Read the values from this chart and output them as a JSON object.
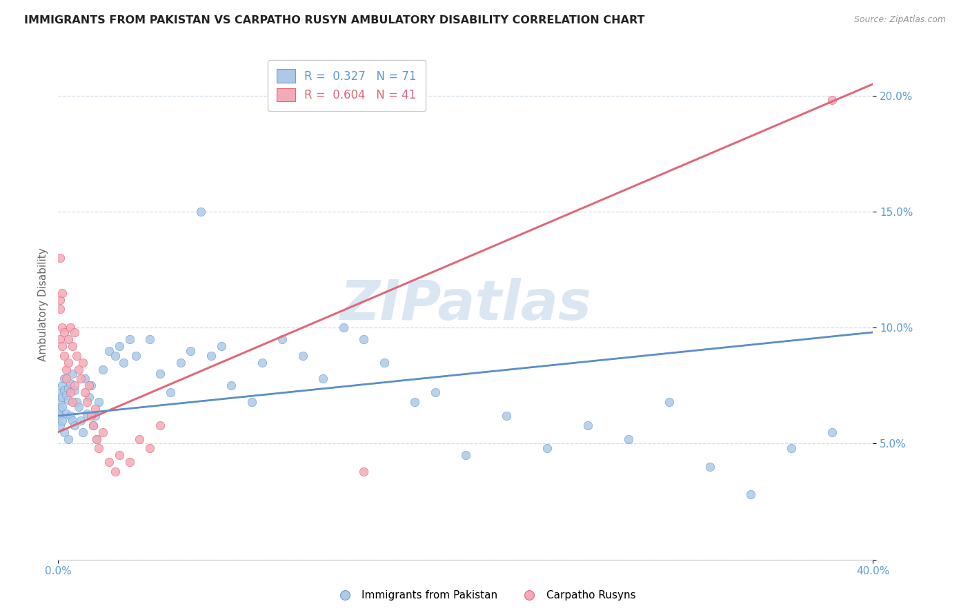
{
  "title": "IMMIGRANTS FROM PAKISTAN VS CARPATHO RUSYN AMBULATORY DISABILITY CORRELATION CHART",
  "source": "Source: ZipAtlas.com",
  "ylabel": "Ambulatory Disability",
  "R_blue": 0.327,
  "N_blue": 71,
  "R_pink": 0.604,
  "N_pink": 41,
  "label_blue": "Immigrants from Pakistan",
  "label_pink": "Carpatho Rusyns",
  "xlim": [
    0.0,
    0.4
  ],
  "ylim": [
    0.0,
    0.22
  ],
  "yticks": [
    0.0,
    0.05,
    0.1,
    0.15,
    0.2
  ],
  "ytick_labels": [
    "",
    "5.0%",
    "10.0%",
    "15.0%",
    "20.0%"
  ],
  "xtick_left": "0.0%",
  "xtick_right": "40.0%",
  "blue_scatter_x": [
    0.001,
    0.001,
    0.001,
    0.001,
    0.001,
    0.002,
    0.002,
    0.002,
    0.002,
    0.003,
    0.003,
    0.003,
    0.004,
    0.004,
    0.005,
    0.005,
    0.005,
    0.006,
    0.006,
    0.007,
    0.007,
    0.008,
    0.008,
    0.009,
    0.01,
    0.011,
    0.012,
    0.013,
    0.014,
    0.015,
    0.016,
    0.017,
    0.018,
    0.019,
    0.02,
    0.022,
    0.025,
    0.028,
    0.03,
    0.032,
    0.035,
    0.038,
    0.045,
    0.05,
    0.055,
    0.06,
    0.065,
    0.07,
    0.075,
    0.08,
    0.085,
    0.095,
    0.1,
    0.11,
    0.12,
    0.13,
    0.14,
    0.15,
    0.16,
    0.175,
    0.185,
    0.2,
    0.22,
    0.24,
    0.26,
    0.28,
    0.3,
    0.32,
    0.34,
    0.36,
    0.38
  ],
  "blue_scatter_y": [
    0.072,
    0.068,
    0.065,
    0.062,
    0.058,
    0.075,
    0.07,
    0.066,
    0.06,
    0.078,
    0.073,
    0.055,
    0.071,
    0.063,
    0.074,
    0.069,
    0.052,
    0.076,
    0.062,
    0.08,
    0.06,
    0.073,
    0.058,
    0.068,
    0.066,
    0.06,
    0.055,
    0.078,
    0.063,
    0.07,
    0.075,
    0.058,
    0.062,
    0.052,
    0.068,
    0.082,
    0.09,
    0.088,
    0.092,
    0.085,
    0.095,
    0.088,
    0.095,
    0.08,
    0.072,
    0.085,
    0.09,
    0.15,
    0.088,
    0.092,
    0.075,
    0.068,
    0.085,
    0.095,
    0.088,
    0.078,
    0.1,
    0.095,
    0.085,
    0.068,
    0.072,
    0.045,
    0.062,
    0.048,
    0.058,
    0.052,
    0.068,
    0.04,
    0.028,
    0.048,
    0.055
  ],
  "pink_scatter_x": [
    0.001,
    0.001,
    0.001,
    0.001,
    0.002,
    0.002,
    0.002,
    0.003,
    0.003,
    0.004,
    0.004,
    0.005,
    0.005,
    0.006,
    0.006,
    0.007,
    0.007,
    0.008,
    0.008,
    0.009,
    0.01,
    0.011,
    0.012,
    0.013,
    0.014,
    0.015,
    0.016,
    0.017,
    0.018,
    0.019,
    0.02,
    0.022,
    0.025,
    0.028,
    0.03,
    0.035,
    0.04,
    0.045,
    0.05,
    0.15,
    0.38
  ],
  "pink_scatter_y": [
    0.13,
    0.112,
    0.108,
    0.095,
    0.115,
    0.1,
    0.092,
    0.098,
    0.088,
    0.082,
    0.078,
    0.095,
    0.085,
    0.1,
    0.072,
    0.092,
    0.068,
    0.098,
    0.075,
    0.088,
    0.082,
    0.078,
    0.085,
    0.072,
    0.068,
    0.075,
    0.062,
    0.058,
    0.065,
    0.052,
    0.048,
    0.055,
    0.042,
    0.038,
    0.045,
    0.042,
    0.052,
    0.048,
    0.058,
    0.038,
    0.198
  ],
  "blue_line_x": [
    0.0,
    0.4
  ],
  "blue_line_y": [
    0.062,
    0.098
  ],
  "pink_line_x": [
    0.0,
    0.4
  ],
  "pink_line_y": [
    0.055,
    0.205
  ],
  "bg_color": "#ffffff",
  "title_color": "#222222",
  "axis_tick_color": "#5b9bd5",
  "grid_color": "#d0dce8",
  "blue_dot_face": "#adc9e8",
  "blue_dot_edge": "#6b9fd4",
  "pink_dot_face": "#f5aab8",
  "pink_dot_edge": "#e06878",
  "blue_line_color": "#5b8fc8",
  "pink_line_color": "#e06878",
  "watermark_color": "#ccdcee",
  "legend_text_blue": "#5b9bd5",
  "legend_text_pink": "#e06878"
}
